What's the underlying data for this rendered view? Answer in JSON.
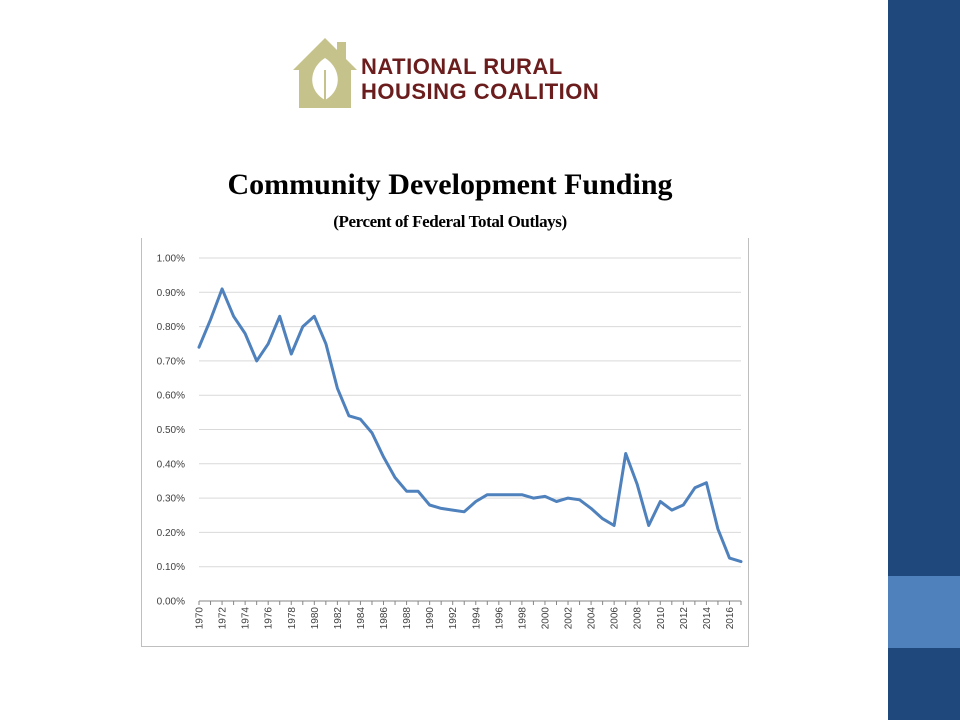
{
  "logo": {
    "line1": "NATIONAL RURAL",
    "line2": "HOUSING COALITION",
    "colors": {
      "house": "#c6c28c",
      "text": "#6b1d1d"
    }
  },
  "slide": {
    "title": "Community Development Funding",
    "subtitle": "(Percent of Federal Total Outlays)"
  },
  "theme": {
    "sidebar": "#1f497d",
    "sidebar_accent": "#4f81bd",
    "line": "#4f81bd"
  },
  "chart_data": {
    "type": "line",
    "title": "Community Development Funding",
    "subtitle": "(Percent of Federal Total Outlays)",
    "xlabel": "",
    "ylabel": "",
    "ylim": [
      0,
      1.0
    ],
    "y_ticks": [
      "0.00%",
      "0.10%",
      "0.20%",
      "0.30%",
      "0.40%",
      "0.50%",
      "0.60%",
      "0.70%",
      "0.80%",
      "0.90%",
      "1.00%"
    ],
    "x_ticks": [
      "1970",
      "1972",
      "1974",
      "1976",
      "1978",
      "1980",
      "1982",
      "1984",
      "1986",
      "1988",
      "1990",
      "1992",
      "1994",
      "1996",
      "1998",
      "2000",
      "2002",
      "2004",
      "2006",
      "2008",
      "2010",
      "2012",
      "2014",
      "2016"
    ],
    "grid": true,
    "legend": "none",
    "x": [
      1970,
      1971,
      1972,
      1973,
      1974,
      1975,
      1976,
      1977,
      1978,
      1979,
      1980,
      1981,
      1982,
      1983,
      1984,
      1985,
      1986,
      1987,
      1988,
      1989,
      1990,
      1991,
      1992,
      1993,
      1994,
      1995,
      1996,
      1997,
      1998,
      1999,
      2000,
      2001,
      2002,
      2003,
      2004,
      2005,
      2006,
      2007,
      2008,
      2009,
      2010,
      2011,
      2012,
      2013,
      2014,
      2015,
      2016,
      2017
    ],
    "series": [
      {
        "values": [
          0.74,
          0.82,
          0.91,
          0.83,
          0.78,
          0.7,
          0.75,
          0.83,
          0.72,
          0.8,
          0.83,
          0.75,
          0.62,
          0.54,
          0.53,
          0.49,
          0.42,
          0.36,
          0.32,
          0.32,
          0.28,
          0.27,
          0.265,
          0.26,
          0.29,
          0.31,
          0.31,
          0.31,
          0.31,
          0.3,
          0.305,
          0.29,
          0.3,
          0.295,
          0.27,
          0.24,
          0.22,
          0.43,
          0.34,
          0.22,
          0.29,
          0.265,
          0.28,
          0.33,
          0.345,
          0.21,
          0.125,
          0.115
        ]
      }
    ]
  }
}
